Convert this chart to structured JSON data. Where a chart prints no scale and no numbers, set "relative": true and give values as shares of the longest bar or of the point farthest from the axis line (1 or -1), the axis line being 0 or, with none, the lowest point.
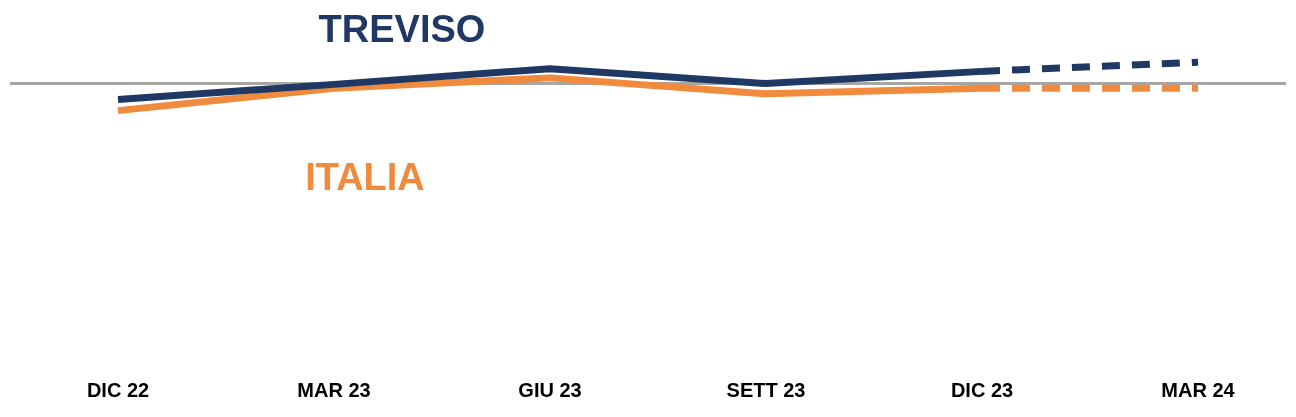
{
  "chart_data": {
    "type": "line",
    "relative": true,
    "marker": "none",
    "categories": [
      "DIC 22",
      "MAR 23",
      "GIU 23",
      "SETT 23",
      "DIC 23",
      "MAR 24"
    ],
    "series": [
      {
        "name": "TREVISO",
        "color": "#1f3864",
        "values": [
          -0.59,
          -0.03,
          0.55,
          0,
          0.45,
          null
        ]
      },
      {
        "color": "#1f3864",
        "line_style": "dashed",
        "values": [
          null,
          null,
          null,
          null,
          0.45,
          0.79
        ]
      },
      {
        "name": "ITALIA",
        "color": "#f08a3c",
        "values": [
          -1,
          -0.17,
          0.21,
          -0.38,
          -0.17,
          null
        ]
      },
      {
        "color": "#f08a3c",
        "line_style": "dashed",
        "values": [
          null,
          null,
          null,
          null,
          -0.17,
          -0.17
        ]
      }
    ]
  }
}
